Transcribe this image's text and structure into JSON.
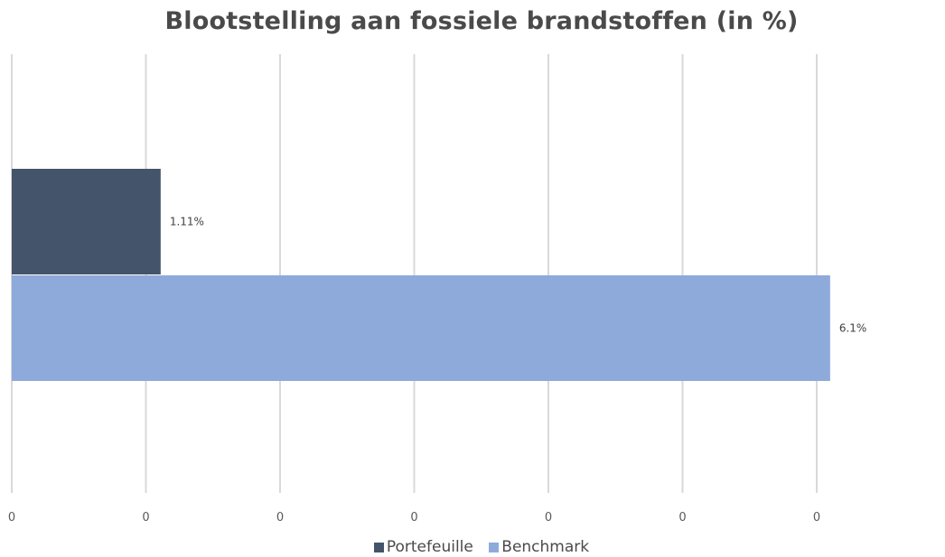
{
  "chart_data": {
    "type": "bar",
    "orientation": "horizontal",
    "title": "Blootstelling aan fossiele brandstoffen (in %)",
    "xlabel": "",
    "ylabel": "",
    "x_tick_labels": [
      "0",
      "0",
      "0",
      "0",
      "0",
      "0",
      "0"
    ],
    "grid": true,
    "legend_position": "bottom",
    "series": [
      {
        "name": "Portefeuille",
        "value": 1.11,
        "label": "1.11%",
        "color": "#44546a"
      },
      {
        "name": "Benchmark",
        "value": 6.1,
        "label": "6.1%",
        "color": "#8eaadb"
      }
    ],
    "xlim": [
      0,
      6.0
    ]
  }
}
